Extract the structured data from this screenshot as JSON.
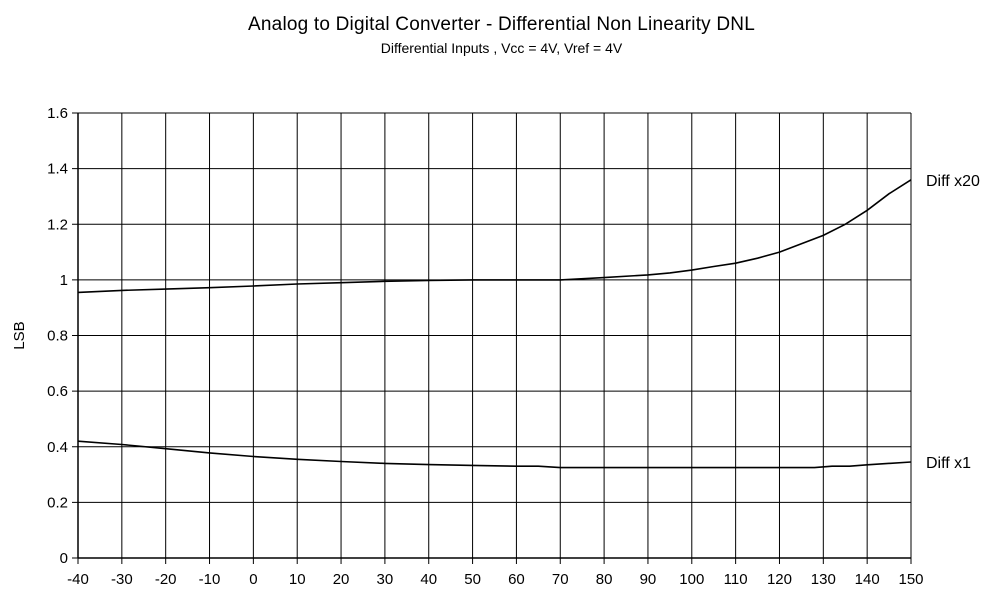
{
  "chart_data": {
    "type": "line",
    "title": "Analog to Digital Converter - Differential  Non Linearity DNL",
    "subtitle": "Differential Inputs , Vcc = 4V, Vref = 4V",
    "xlabel": "",
    "ylabel": "LSB",
    "xlim": [
      -40,
      150
    ],
    "ylim": [
      0,
      1.6
    ],
    "x_ticks": [
      -40,
      -30,
      -20,
      -10,
      0,
      10,
      20,
      30,
      40,
      50,
      60,
      70,
      80,
      90,
      100,
      110,
      120,
      130,
      140,
      150
    ],
    "y_ticks": [
      0,
      0.2,
      0.4,
      0.6,
      0.8,
      1,
      1.2,
      1.4,
      1.6
    ],
    "grid": true,
    "series": [
      {
        "name": "Diff x20",
        "x": [
          -40,
          -30,
          -20,
          -10,
          0,
          10,
          20,
          30,
          40,
          50,
          60,
          70,
          80,
          90,
          95,
          100,
          105,
          110,
          115,
          120,
          125,
          130,
          135,
          140,
          145,
          150
        ],
        "y": [
          0.955,
          0.962,
          0.967,
          0.972,
          0.978,
          0.985,
          0.99,
          0.995,
          0.998,
          1.0,
          1.0,
          1.0,
          1.008,
          1.018,
          1.025,
          1.035,
          1.048,
          1.06,
          1.078,
          1.1,
          1.13,
          1.16,
          1.2,
          1.25,
          1.31,
          1.36
        ]
      },
      {
        "name": "Diff x1",
        "x": [
          -40,
          -30,
          -20,
          -10,
          0,
          10,
          20,
          30,
          40,
          50,
          60,
          65,
          70,
          80,
          90,
          100,
          110,
          120,
          128,
          132,
          136,
          140,
          150
        ],
        "y": [
          0.42,
          0.408,
          0.393,
          0.378,
          0.365,
          0.355,
          0.347,
          0.34,
          0.336,
          0.333,
          0.33,
          0.33,
          0.325,
          0.325,
          0.325,
          0.325,
          0.325,
          0.325,
          0.325,
          0.33,
          0.33,
          0.335,
          0.345
        ]
      }
    ]
  }
}
